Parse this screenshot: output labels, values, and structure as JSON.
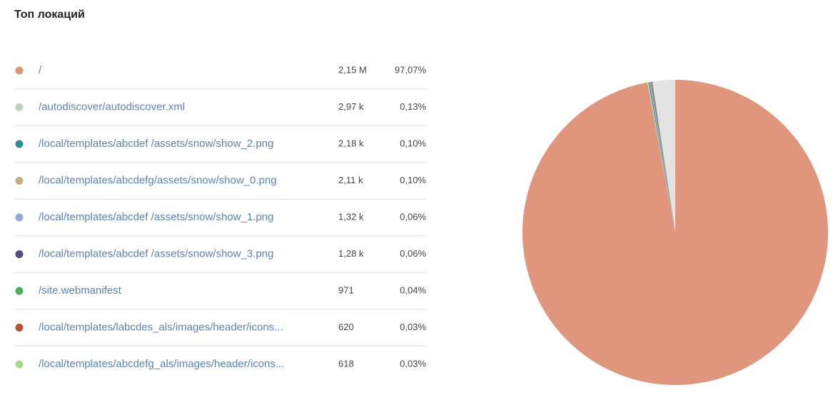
{
  "chart_data": {
    "type": "pie",
    "title": "Топ локаций",
    "categories": [
      "/",
      "/autodiscover/autodiscover.xml",
      "/local/templates/abcdef /assets/snow/show_2.png",
      "/local/templates/abcdefg/assets/snow/show_0.png",
      "/local/templates/abcdef /assets/snow/show_1.png",
      "/local/templates/abcdef /assets/snow/show_3.png",
      "/site.webmanifest",
      "/local/templates/labcdes_als/images/header/icons...",
      "/local/templates/abcdefg_als/images/header/icons..."
    ],
    "values": [
      97.07,
      0.13,
      0.1,
      0.1,
      0.06,
      0.06,
      0.04,
      0.03,
      0.03
    ],
    "value_labels": [
      "97,07%",
      "0,13%",
      "0,10%",
      "0,10%",
      "0,06%",
      "0,06%",
      "0,04%",
      "0,03%",
      "0,03%"
    ],
    "counts": [
      2150000,
      2970,
      2180,
      2110,
      1320,
      1280,
      971,
      620,
      618
    ],
    "count_labels": [
      "2,15 M",
      "2,97 k",
      "2,18 k",
      "2,11 k",
      "1,32 k",
      "1,28 k",
      "971",
      "620",
      "618"
    ],
    "colors": [
      "#e0967c",
      "#b9d6bd",
      "#2f8c98",
      "#c8aa8a",
      "#8eaadd",
      "#4d4e7e",
      "#4cae62",
      "#b5522f",
      "#a9d88e"
    ]
  }
}
